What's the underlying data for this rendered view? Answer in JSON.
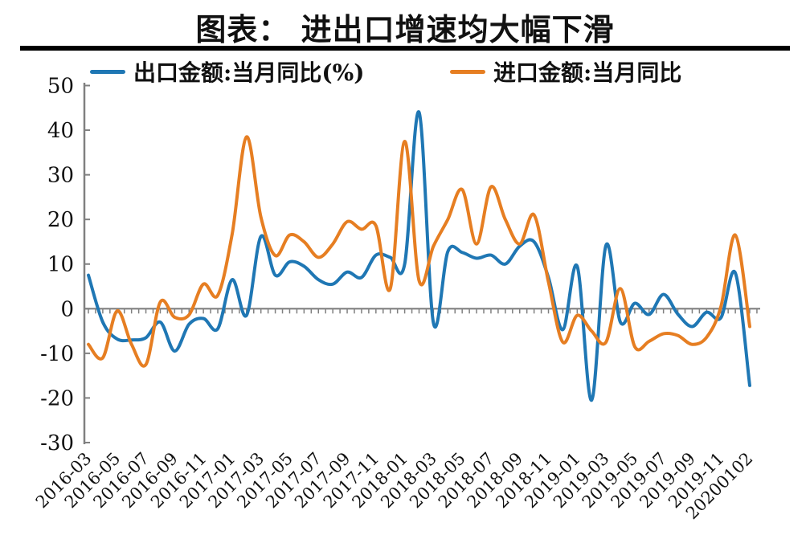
{
  "title": {
    "text": "图表： 进出口增速均大幅下滑"
  },
  "legend": [
    {
      "label": "出口金额:当月同比(%)",
      "color": "#1f77b4"
    },
    {
      "label": "进口金额:当月同比",
      "color": "#e67e22"
    }
  ],
  "axis_colors": {
    "axis": "#808080",
    "tick": "#808080",
    "text": "#111111"
  },
  "chart_data": {
    "type": "line",
    "smooth": true,
    "title": "图表： 进出口增速均大幅下滑",
    "xlabel": "",
    "ylabel": "",
    "ylim": [
      -30,
      50
    ],
    "y_ticks": [
      50,
      40,
      30,
      20,
      10,
      0,
      -10,
      -20,
      -30
    ],
    "zero_line": true,
    "grid": false,
    "legend_position": "top",
    "x": [
      "2016-03",
      "2016-04",
      "2016-05",
      "2016-06",
      "2016-07",
      "2016-08",
      "2016-09",
      "2016-10",
      "2016-11",
      "2016-12",
      "2017-01",
      "2017-02",
      "2017-03",
      "2017-04",
      "2017-05",
      "2017-06",
      "2017-07",
      "2017-08",
      "2017-09",
      "2017-10",
      "2017-11",
      "2017-12",
      "2018-01",
      "2018-02",
      "2018-03",
      "2018-04",
      "2018-05",
      "2018-06",
      "2018-07",
      "2018-08",
      "2018-09",
      "2018-10",
      "2018-11",
      "2018-12",
      "2019-01",
      "2019-02",
      "2019-03",
      "2019-04",
      "2019-05",
      "2019-06",
      "2019-07",
      "2019-08",
      "2019-09",
      "2019-10",
      "2019-11",
      "2019-12",
      "20200102"
    ],
    "x_tick_labels": [
      "2016-03",
      "2016-05",
      "2016-07",
      "2016-09",
      "2016-11",
      "2017-01",
      "2017-03",
      "2017-05",
      "2017-07",
      "2017-09",
      "2017-11",
      "2018-01",
      "2018-03",
      "2018-05",
      "2018-07",
      "2018-09",
      "2018-11",
      "2019-01",
      "2019-03",
      "2019-05",
      "2019-07",
      "2019-09",
      "2019-11",
      "20200102"
    ],
    "series": [
      {
        "name": "出口金额:当月同比(%)",
        "color": "#1f77b4",
        "values": [
          7.5,
          -3,
          -6.8,
          -7,
          -6.5,
          -3,
          -9.5,
          -3.5,
          -2.2,
          -4.5,
          6.5,
          -1.5,
          16.2,
          7.5,
          10.5,
          9.5,
          6.5,
          5.5,
          8.2,
          7,
          12,
          11.5,
          10,
          44,
          -3.2,
          12.8,
          12.6,
          11.3,
          12,
          10,
          14,
          15,
          7,
          -4.7,
          9.5,
          -20.5,
          14.2,
          -3,
          1.2,
          -1.3,
          3.2,
          -1.2,
          -4,
          -0.8,
          -2,
          8,
          -17.2
        ]
      },
      {
        "name": "进口金额:当月同比",
        "color": "#e67e22",
        "values": [
          -8,
          -11,
          -0.5,
          -8,
          -12.5,
          1.5,
          -1.9,
          -1.4,
          5.5,
          3,
          16.7,
          38.5,
          20.5,
          11.9,
          16.5,
          15,
          11.5,
          14.5,
          19.5,
          17.8,
          18.6,
          4.5,
          37.5,
          6.3,
          14,
          20,
          26.7,
          14.5,
          27.3,
          20,
          14.5,
          21,
          6,
          -7.5,
          -1.5,
          -5,
          -7.5,
          4.5,
          -8.5,
          -7.3,
          -5.6,
          -6,
          -8,
          -6.4,
          0.5,
          16.5,
          -4
        ]
      }
    ]
  }
}
